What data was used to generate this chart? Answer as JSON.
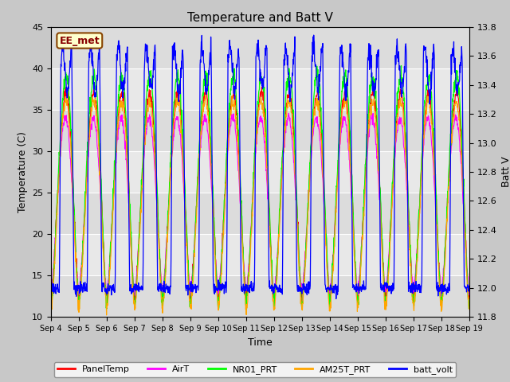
{
  "title": "Temperature and Batt V",
  "xlabel": "Time",
  "ylabel_left": "Temperature (C)",
  "ylabel_right": "Batt V",
  "ylim_left": [
    10,
    45
  ],
  "ylim_right": [
    11.8,
    13.8
  ],
  "yticks_left": [
    10,
    15,
    20,
    25,
    30,
    35,
    40,
    45
  ],
  "yticks_right": [
    11.8,
    12.0,
    12.2,
    12.4,
    12.6,
    12.8,
    13.0,
    13.2,
    13.4,
    13.6,
    13.8
  ],
  "xticklabels": [
    "Sep 4",
    "Sep 5",
    "Sep 6",
    "Sep 7",
    "Sep 8",
    "Sep 9",
    "Sep 10",
    "Sep 11",
    "Sep 12",
    "Sep 13",
    "Sep 14",
    "Sep 15",
    "Sep 16",
    "Sep 17",
    "Sep 18",
    "Sep 19"
  ],
  "legend_entries": [
    "PanelTemp",
    "AirT",
    "NR01_PRT",
    "AM25T_PRT",
    "batt_volt"
  ],
  "legend_colors": [
    "#FF0000",
    "#FF00FF",
    "#00FF00",
    "#FFA500",
    "#0000FF"
  ],
  "station_label": "EE_met",
  "station_label_color": "#880000",
  "station_box_fill": "#FFFFCC",
  "station_box_edge": "#884400",
  "fig_facecolor": "#C8C8C8",
  "plot_bg_color": "#E0E0E0",
  "n_days": 15,
  "points_per_day": 96
}
